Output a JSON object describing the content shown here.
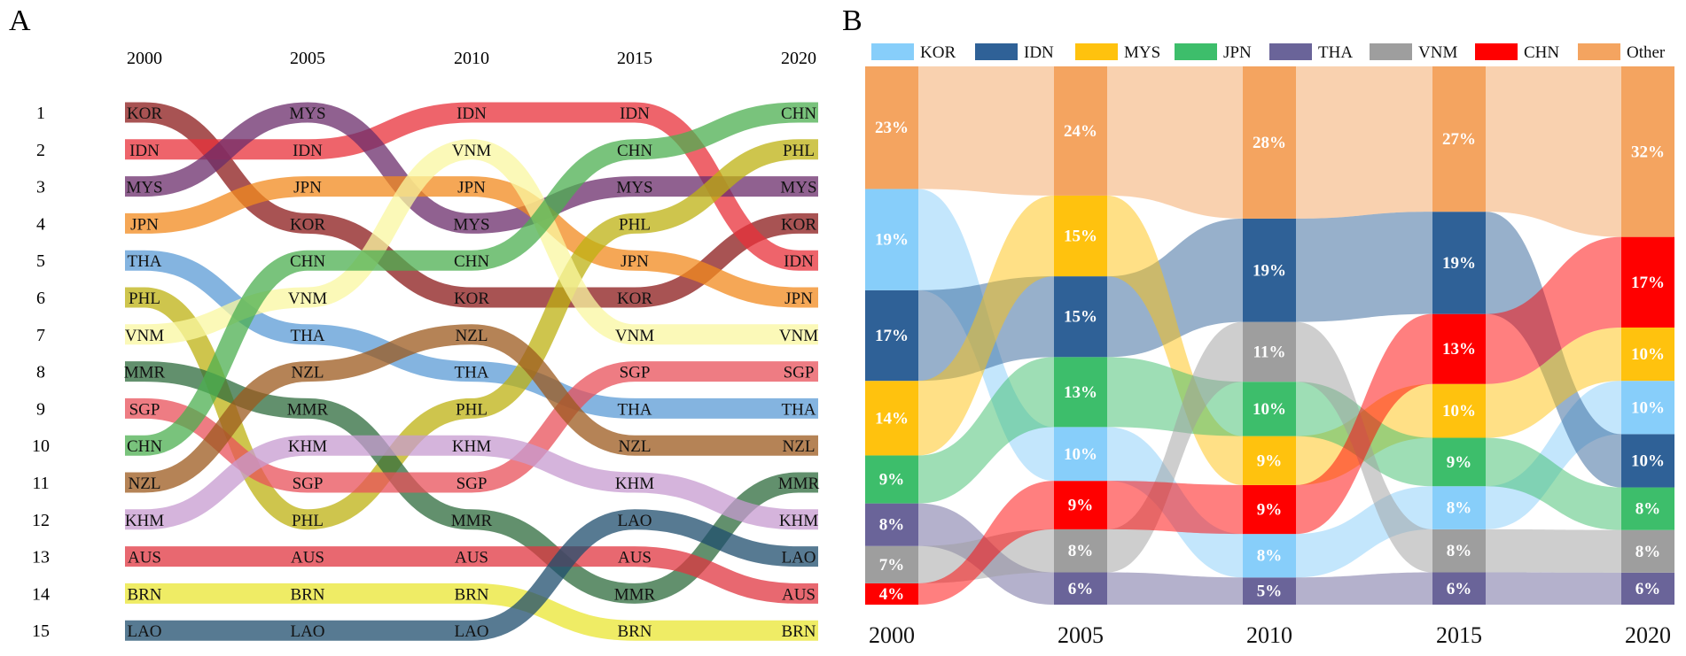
{
  "figure": {
    "panel_a_label": "A",
    "panel_b_label": "B"
  },
  "chart_data": [
    {
      "type": "bump",
      "panel": "A",
      "years": [
        "2000",
        "2005",
        "2010",
        "2015",
        "2020"
      ],
      "rank_labels": [
        "1",
        "2",
        "3",
        "4",
        "5",
        "6",
        "7",
        "8",
        "9",
        "10",
        "11",
        "12",
        "13",
        "14",
        "15"
      ],
      "series": [
        {
          "name": "KOR",
          "color": "#8B1A1A",
          "ranks": [
            1,
            4,
            6,
            6,
            4
          ]
        },
        {
          "name": "IDN",
          "color": "#E8303A",
          "ranks": [
            2,
            2,
            1,
            1,
            5
          ]
        },
        {
          "name": "MYS",
          "color": "#6B2C6B",
          "ranks": [
            3,
            1,
            4,
            3,
            3
          ]
        },
        {
          "name": "JPN",
          "color": "#F28A1E",
          "ranks": [
            4,
            3,
            3,
            5,
            6
          ]
        },
        {
          "name": "THA",
          "color": "#5B9BD5",
          "ranks": [
            5,
            7,
            8,
            9,
            9
          ]
        },
        {
          "name": "PHL",
          "color": "#BDB211",
          "ranks": [
            6,
            12,
            9,
            4,
            2
          ]
        },
        {
          "name": "VNM",
          "color": "#FAF7A0",
          "ranks": [
            7,
            6,
            2,
            7,
            7
          ]
        },
        {
          "name": "MMR",
          "color": "#2E6B3C",
          "ranks": [
            8,
            9,
            12,
            14,
            11
          ]
        },
        {
          "name": "SGP",
          "color": "#E8505A",
          "ranks": [
            9,
            11,
            11,
            8,
            8
          ]
        },
        {
          "name": "CHN",
          "color": "#4CAF50",
          "ranks": [
            10,
            5,
            5,
            2,
            1
          ]
        },
        {
          "name": "NZL",
          "color": "#9C5A1E",
          "ranks": [
            11,
            8,
            7,
            10,
            10
          ]
        },
        {
          "name": "KHM",
          "color": "#C79BD0",
          "ranks": [
            12,
            10,
            10,
            11,
            12
          ]
        },
        {
          "name": "AUS",
          "color": "#E03540",
          "ranks": [
            13,
            13,
            13,
            13,
            14
          ]
        },
        {
          "name": "BRN",
          "color": "#E9E631",
          "ranks": [
            14,
            14,
            14,
            15,
            15
          ]
        },
        {
          "name": "LAO",
          "color": "#1F4E6E",
          "ranks": [
            15,
            15,
            15,
            12,
            13
          ]
        }
      ]
    },
    {
      "type": "stacked_bar_alluvial",
      "panel": "B",
      "years": [
        "2000",
        "2005",
        "2010",
        "2015",
        "2020"
      ],
      "ylim": [
        0,
        100
      ],
      "legend_position": "top",
      "series": [
        {
          "name": "KOR",
          "color": "#87CEFA",
          "values": [
            19,
            10,
            8,
            8,
            10
          ]
        },
        {
          "name": "IDN",
          "color": "#2F6197",
          "values": [
            17,
            15,
            19,
            19,
            10
          ]
        },
        {
          "name": "MYS",
          "color": "#FFC20E",
          "values": [
            14,
            15,
            9,
            10,
            10
          ]
        },
        {
          "name": "JPN",
          "color": "#3DBE6B",
          "values": [
            9,
            13,
            10,
            9,
            8
          ]
        },
        {
          "name": "THA",
          "color": "#6A6499",
          "values": [
            8,
            6,
            5,
            6,
            6
          ]
        },
        {
          "name": "VNM",
          "color": "#9E9E9E",
          "values": [
            7,
            8,
            11,
            8,
            8
          ]
        },
        {
          "name": "CHN",
          "color": "#FF0000",
          "values": [
            4,
            9,
            9,
            13,
            17
          ]
        },
        {
          "name": "Other",
          "color": "#F4A460",
          "values": [
            23,
            24,
            28,
            27,
            32
          ]
        }
      ],
      "stack_order": [
        [
          "CHN",
          "VNM",
          "THA",
          "JPN",
          "MYS",
          "IDN",
          "KOR",
          "Other"
        ],
        [
          "THA",
          "VNM",
          "CHN",
          "KOR",
          "JPN",
          "IDN",
          "MYS",
          "Other"
        ],
        [
          "THA",
          "KOR",
          "CHN",
          "MYS",
          "JPN",
          "VNM",
          "IDN",
          "Other"
        ],
        [
          "THA",
          "VNM",
          "KOR",
          "JPN",
          "MYS",
          "CHN",
          "IDN",
          "Other"
        ],
        [
          "THA",
          "VNM",
          "JPN",
          "IDN",
          "KOR",
          "MYS",
          "CHN",
          "Other"
        ]
      ],
      "labels": [
        {
          "Other": "23%",
          "KOR": "19%",
          "IDN": "17%",
          "MYS": "14%",
          "JPN": "9%",
          "THA": "8%",
          "VNM": "7%",
          "CHN": "4%"
        },
        {
          "Other": "24%",
          "MYS": "15%",
          "IDN": "15%",
          "JPN": "13%",
          "KOR": "10%",
          "CHN": "9%",
          "VNM": "8%",
          "THA": "6%"
        },
        {
          "Other": "28%",
          "IDN": "19%",
          "VNM": "11%",
          "JPN": "10%",
          "MYS": "9%",
          "CHN": "9%",
          "KOR": "8%",
          "THA": "5%"
        },
        {
          "Other": "27%",
          "IDN": "19%",
          "CHN": "13%",
          "MYS": "10%",
          "JPN": "9%",
          "KOR": "8%",
          "VNM": "8%",
          "THA": "6%"
        },
        {
          "Other": "32%",
          "CHN": "17%",
          "MYS": "10%",
          "KOR": "10%",
          "IDN": "10%",
          "JPN": "8%",
          "VNM": "8%",
          "THA": "6%"
        }
      ]
    }
  ]
}
